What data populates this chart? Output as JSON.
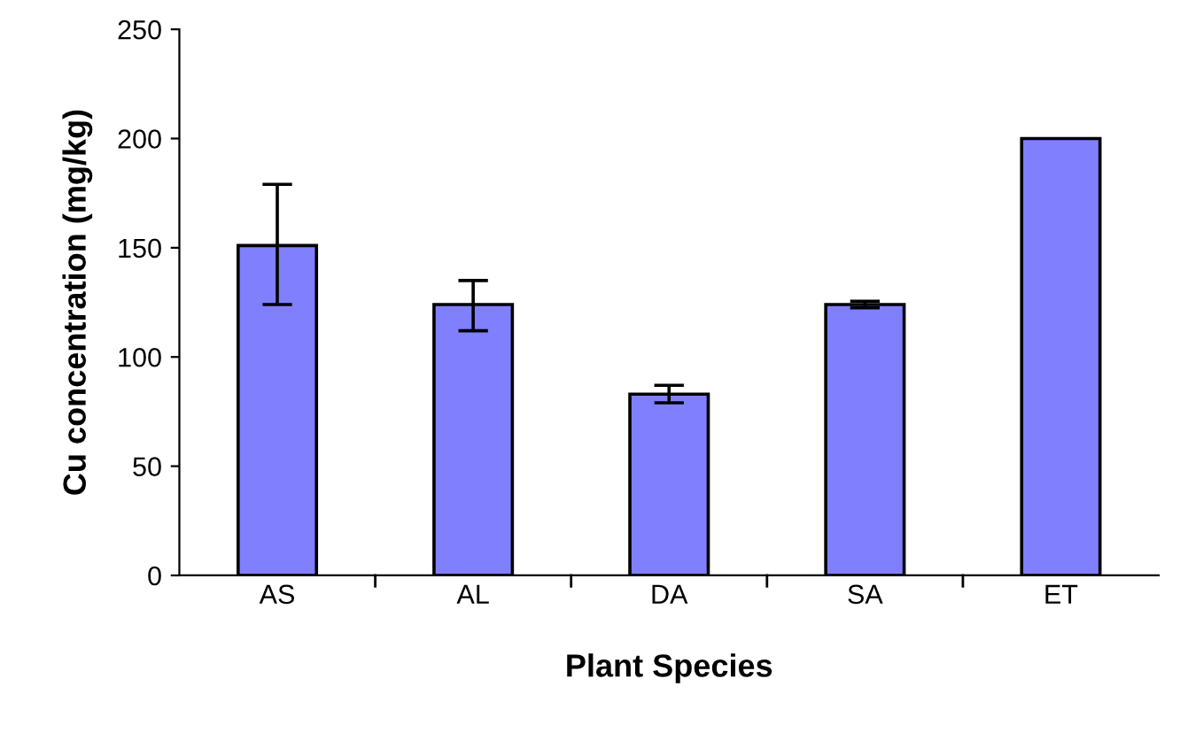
{
  "chart_data": {
    "type": "bar",
    "xlabel": "Plant Species",
    "ylabel": "Cu concentration (mg/kg)",
    "categories": [
      "AS",
      "AL",
      "DA",
      "SA",
      "ET"
    ],
    "values": [
      151,
      124,
      83,
      124,
      200
    ],
    "errors": [
      [
        124,
        179
      ],
      [
        112,
        135
      ],
      [
        79,
        87
      ],
      [
        122.5,
        125.5
      ],
      null
    ],
    "color": "#8080ff",
    "ylim": [
      0,
      250
    ],
    "yticks": [
      0,
      50,
      100,
      150,
      200,
      250
    ],
    "grid": false,
    "legend": false
  }
}
